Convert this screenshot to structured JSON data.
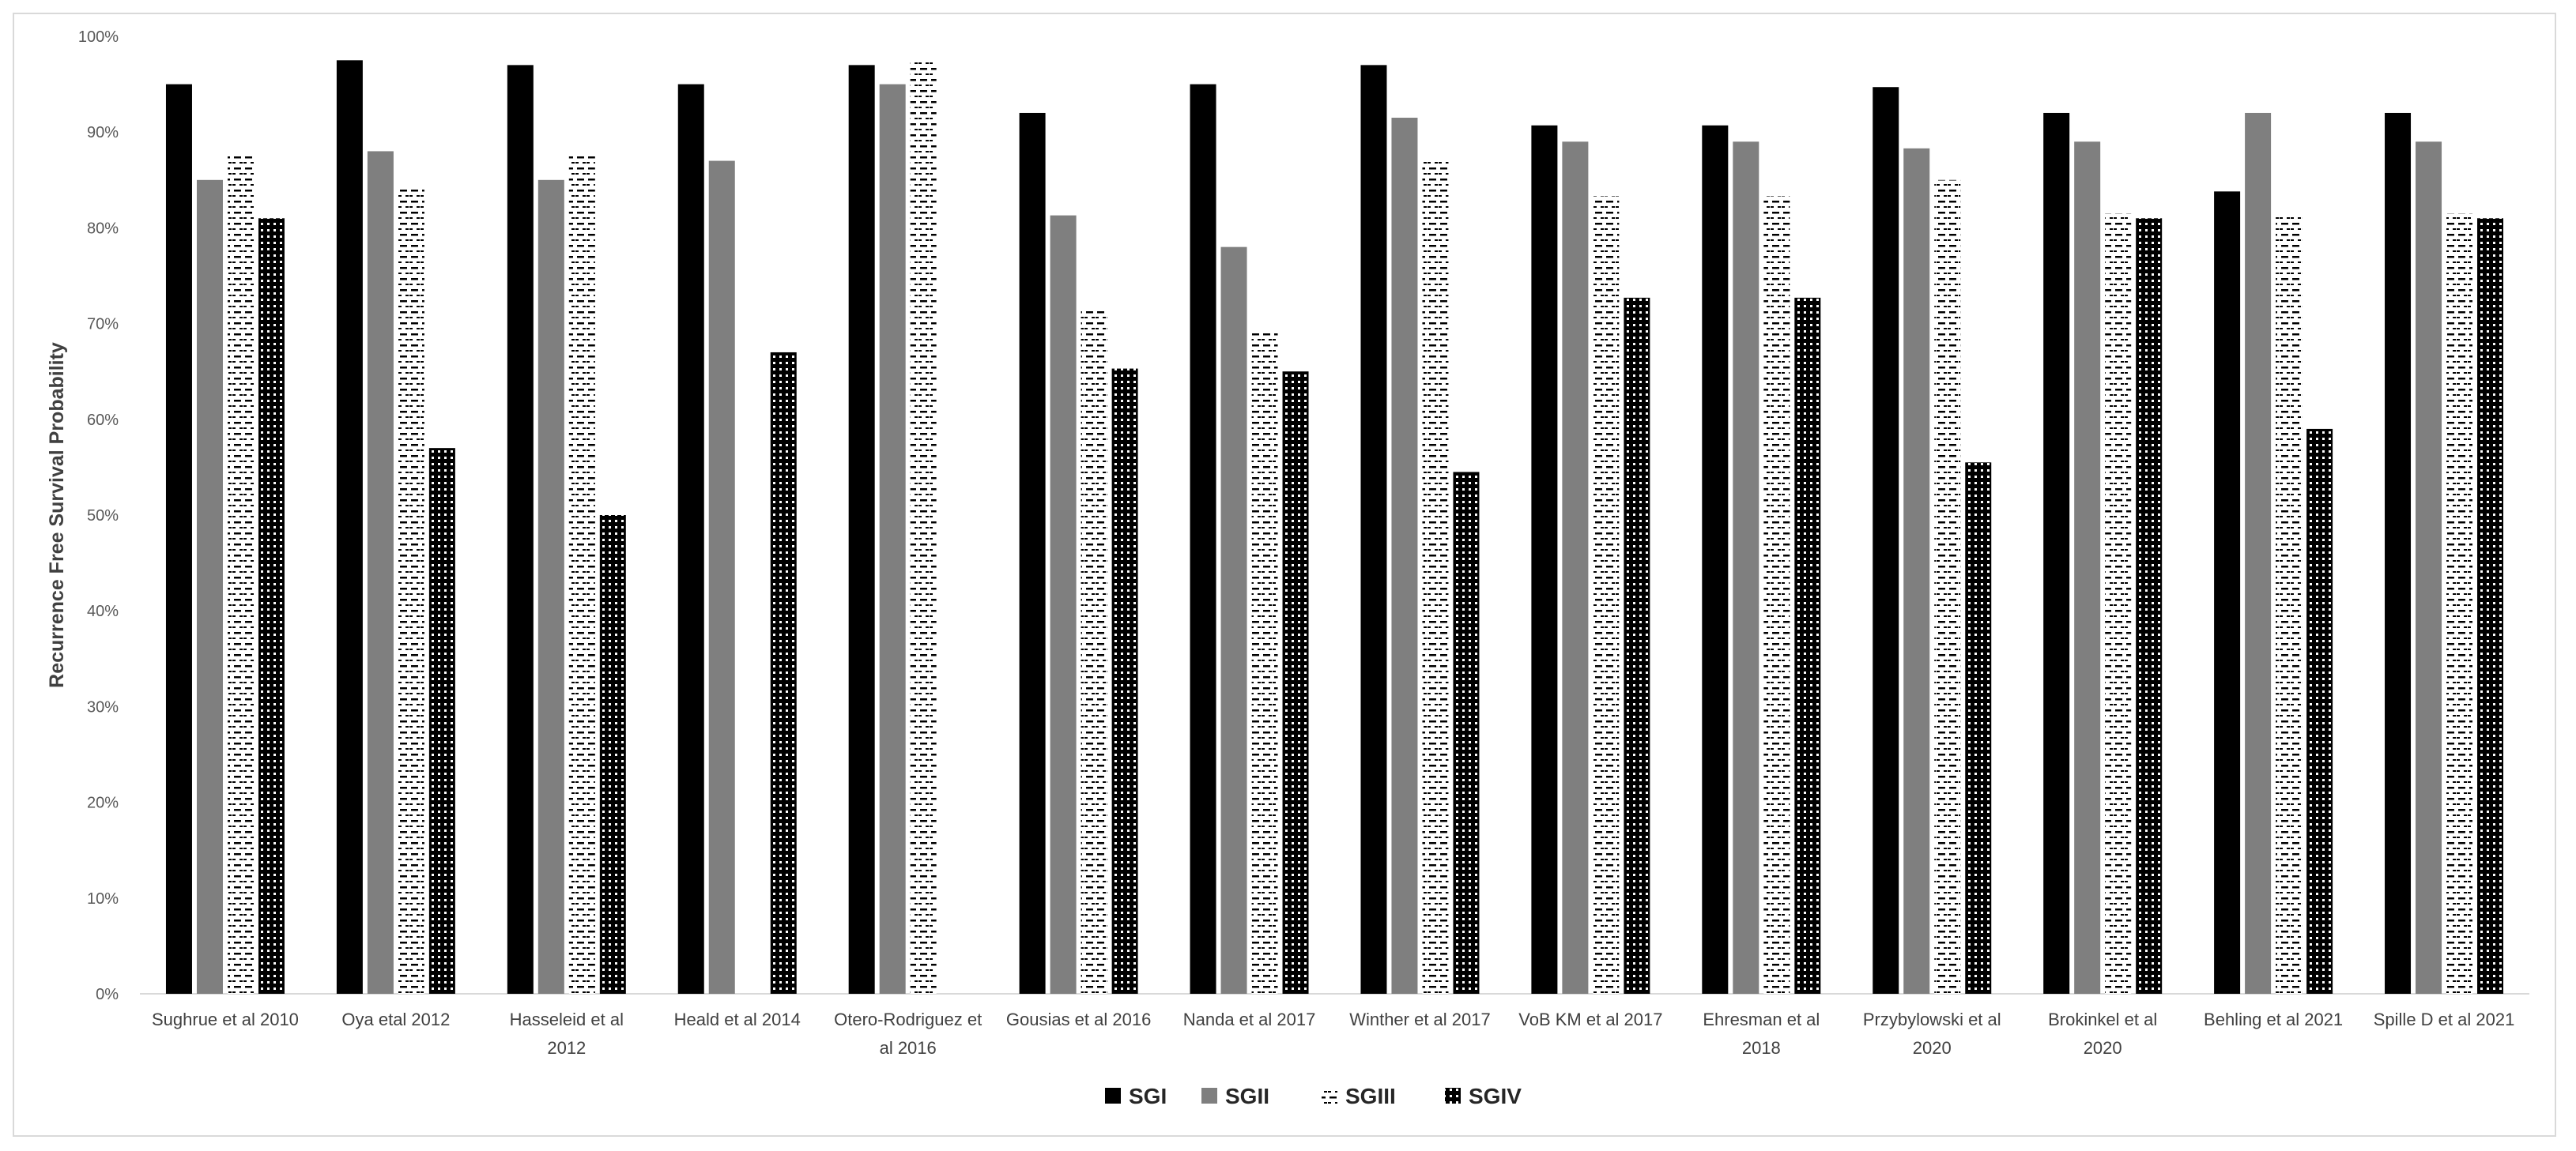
{
  "chart_data": {
    "type": "bar",
    "title": "",
    "xlabel": "",
    "ylabel": "Recurrence Free Survival Probability",
    "ylim": [
      0,
      100
    ],
    "yticks": [
      "0%",
      "10%",
      "20%",
      "30%",
      "40%",
      "50%",
      "60%",
      "70%",
      "80%",
      "90%",
      "100%"
    ],
    "grid": false,
    "legend_position": "bottom",
    "categories": [
      "Sughrue et al 2010",
      "Oya etal 2012",
      "Hasseleid et al\n2012",
      "Heald et al 2014",
      "Otero-Rodriguez et\nal 2016",
      "Gousias et al 2016",
      "Nanda et al 2017",
      "Winther et al 2017",
      "VoB KM et al 2017",
      "Ehresman et al\n2018",
      "Przybylowski et al\n2020",
      "Brokinkel et al\n2020",
      "Behling et al 2021",
      "Spille D et al 2021"
    ],
    "series": [
      {
        "name": "SGI",
        "fill": "solid-black",
        "color": "#000000",
        "values": [
          95,
          97.5,
          97,
          95,
          97,
          92,
          95,
          97,
          90.7,
          90.7,
          94.7,
          92,
          83.8,
          92
        ]
      },
      {
        "name": "SGII",
        "fill": "solid-gray",
        "color": "#7f7f7f",
        "values": [
          85,
          88,
          85,
          87,
          95,
          81.3,
          78,
          91.5,
          89,
          89,
          88.3,
          89,
          92,
          89
        ]
      },
      {
        "name": "SGIII",
        "fill": "dashes-on-white",
        "color": "#000000",
        "values": [
          87.5,
          84,
          87.5,
          null,
          97.5,
          71.5,
          69,
          87,
          83.3,
          83.3,
          85,
          81.5,
          81.3,
          81.5
        ]
      },
      {
        "name": "SGIV",
        "fill": "dots-on-black",
        "color": "#000000",
        "values": [
          81,
          57,
          50,
          67,
          null,
          65.3,
          65,
          54.5,
          72.7,
          72.7,
          55.5,
          81,
          59,
          81
        ]
      }
    ]
  }
}
